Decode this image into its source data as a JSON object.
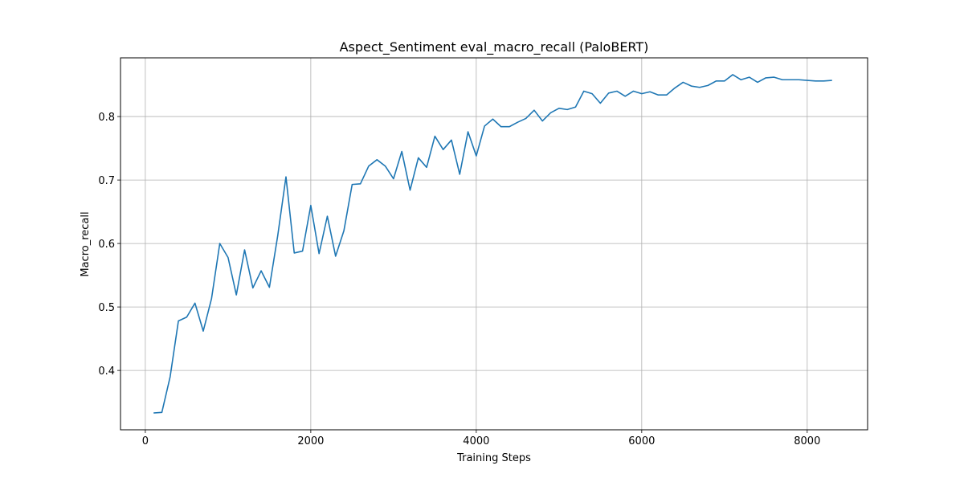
{
  "chart_data": {
    "type": "line",
    "title": "Aspect_Sentiment eval_macro_recall (PaloBERT)",
    "xlabel": "Training Steps",
    "ylabel": "Macro_recall",
    "xlim": [
      -300,
      8730
    ],
    "ylim": [
      0.3065,
      0.8925
    ],
    "xticks": [
      0,
      2000,
      4000,
      6000,
      8000
    ],
    "xtick_labels": [
      "0",
      "2000",
      "4000",
      "6000",
      "8000"
    ],
    "yticks": [
      0.4,
      0.5,
      0.6,
      0.7,
      0.8
    ],
    "ytick_labels": [
      "0.4",
      "0.5",
      "0.6",
      "0.7",
      "0.8"
    ],
    "grid": true,
    "line_color": "#1f77b4",
    "series": [
      {
        "x": [
          100,
          200,
          300,
          400,
          500,
          600,
          700,
          800,
          900,
          1000,
          1100,
          1200,
          1300,
          1400,
          1500,
          1600,
          1700,
          1800,
          1900,
          2000,
          2100,
          2200,
          2300,
          2400,
          2500,
          2600,
          2700,
          2800,
          2900,
          3000,
          3100,
          3200,
          3300,
          3400,
          3500,
          3600,
          3700,
          3800,
          3900,
          4000,
          4100,
          4200,
          4300,
          4400,
          4500,
          4600,
          4700,
          4800,
          4900,
          5000,
          5100,
          5200,
          5300,
          5400,
          5500,
          5600,
          5700,
          5800,
          5900,
          6000,
          6100,
          6200,
          6300,
          6400,
          6500,
          6600,
          6700,
          6800,
          6900,
          7000,
          7100,
          7200,
          7300,
          7400,
          7500,
          7600,
          7700,
          7800,
          7900,
          8000,
          8100,
          8200,
          8300
        ],
        "y": [
          0.333,
          0.334,
          0.39,
          0.478,
          0.484,
          0.506,
          0.462,
          0.513,
          0.6,
          0.578,
          0.519,
          0.59,
          0.53,
          0.557,
          0.531,
          0.612,
          0.705,
          0.585,
          0.588,
          0.66,
          0.584,
          0.643,
          0.58,
          0.62,
          0.693,
          0.694,
          0.722,
          0.732,
          0.722,
          0.702,
          0.745,
          0.684,
          0.735,
          0.72,
          0.769,
          0.748,
          0.763,
          0.709,
          0.776,
          0.738,
          0.785,
          0.796,
          0.784,
          0.784,
          0.791,
          0.797,
          0.81,
          0.793,
          0.806,
          0.813,
          0.811,
          0.815,
          0.84,
          0.836,
          0.821,
          0.837,
          0.84,
          0.832,
          0.84,
          0.836,
          0.839,
          0.834,
          0.834,
          0.845,
          0.854,
          0.848,
          0.846,
          0.849,
          0.856,
          0.856,
          0.866,
          0.858,
          0.862,
          0.854,
          0.861,
          0.862,
          0.858,
          0.858,
          0.858,
          0.857,
          0.856,
          0.856,
          0.857
        ]
      }
    ]
  }
}
